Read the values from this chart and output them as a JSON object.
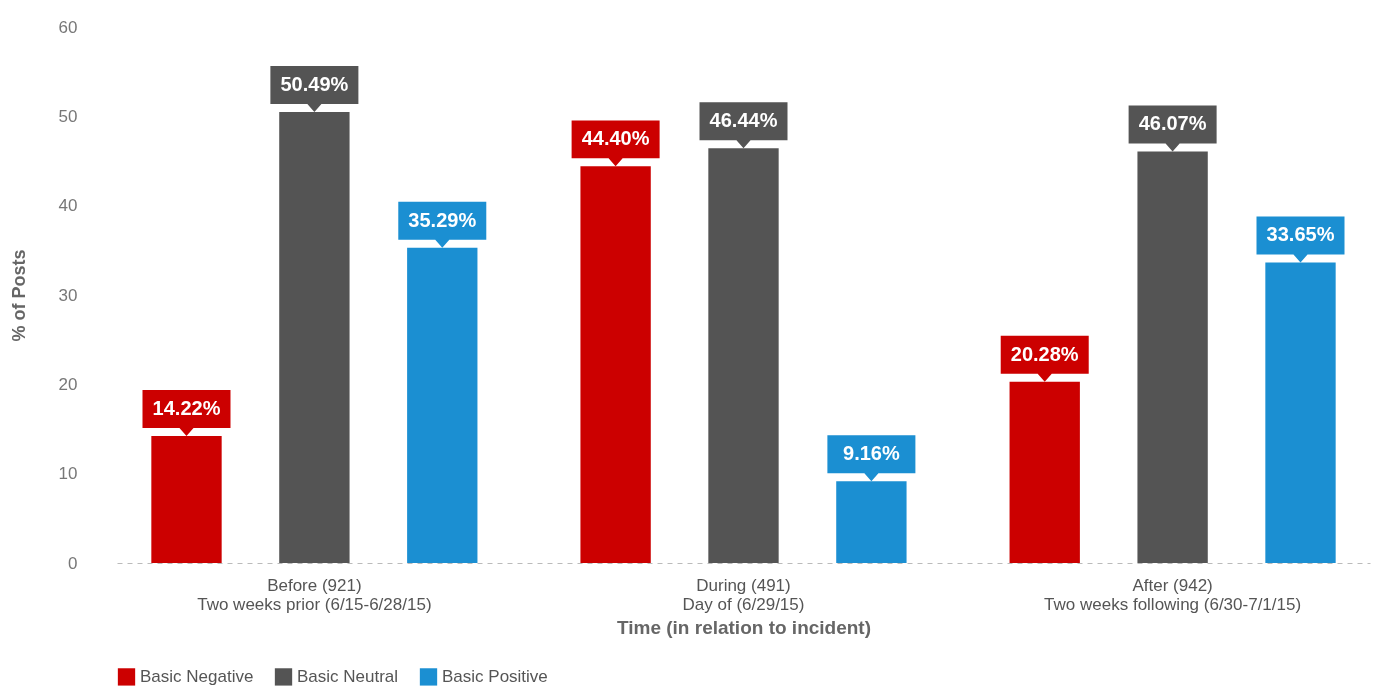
{
  "chart_data": {
    "type": "bar",
    "xlabel": "Time (in relation to incident)",
    "ylabel": "% of Posts",
    "categories": [
      "Before (921)\nTwo weeks prior (6/15-6/28/15)",
      "During (491)\nDay of (6/29/15)",
      "After (942)\nTwo weeks following (6/30-7/1/15)"
    ],
    "series": [
      {
        "name": "Basic Negative",
        "color": "#cc0000",
        "values": [
          14.22,
          44.4,
          20.28
        ],
        "value_labels": [
          "14.22%",
          "44.40%",
          "20.28%"
        ]
      },
      {
        "name": "Basic Neutral",
        "color": "#545454",
        "values": [
          50.49,
          46.44,
          46.07
        ],
        "value_labels": [
          "50.49%",
          "46.44%",
          "46.07%"
        ]
      },
      {
        "name": "Basic Positive",
        "color": "#1b8fd2",
        "values": [
          35.29,
          9.16,
          33.65
        ],
        "value_labels": [
          "35.29%",
          "9.16%",
          "33.65%"
        ]
      }
    ],
    "ylim": [
      0,
      60
    ],
    "yticks": [
      0,
      10,
      20,
      30,
      40,
      50,
      60
    ],
    "grid": false,
    "legend": "bottom"
  }
}
